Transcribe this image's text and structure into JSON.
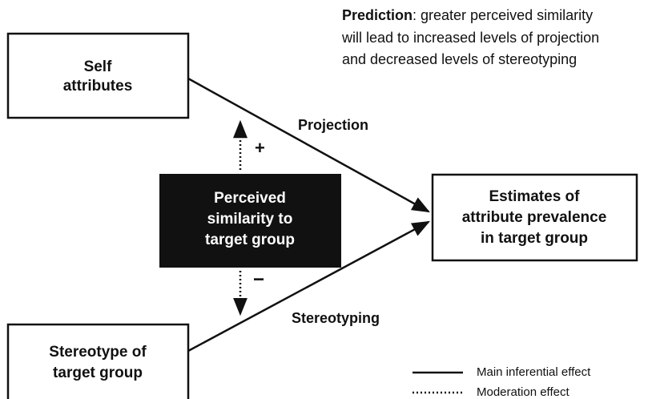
{
  "prediction": {
    "label": "Prediction",
    "lines": [
      ": greater perceived similarity",
      "will lead to increased levels of projection",
      "and decreased levels of stereotyping"
    ]
  },
  "nodes": [
    {
      "lines": [
        "Self",
        "attributes"
      ]
    },
    {
      "lines": [
        "Perceived",
        "similarity to",
        "target group"
      ]
    },
    {
      "lines": [
        "Estimates of",
        "attribute prevalence",
        "in target group"
      ]
    },
    {
      "lines": [
        "Stereotype of",
        "target group"
      ]
    }
  ],
  "edges": {
    "projection": "Projection",
    "stereotyping": "Stereotyping",
    "plus": "+",
    "minus": "−"
  },
  "legend": [
    "Main inferential effect",
    "Moderation effect"
  ]
}
